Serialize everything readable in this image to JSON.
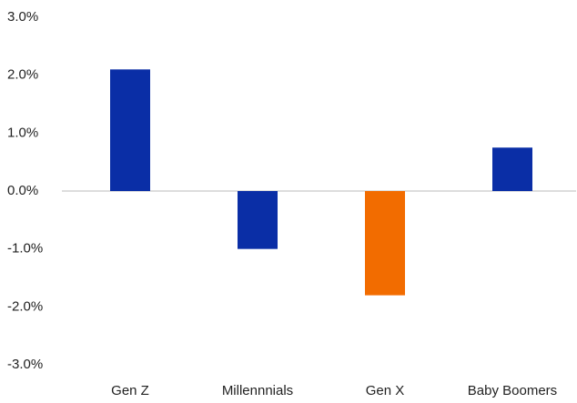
{
  "chart_data": {
    "type": "bar",
    "categories": [
      "Gen Z",
      "Millennnials",
      "Gen X",
      "Baby Boomers"
    ],
    "values": [
      2.1,
      -1.0,
      -1.8,
      0.75
    ],
    "colors": [
      "#0a2ea6",
      "#0a2ea6",
      "#f26c00",
      "#0a2ea6"
    ],
    "ylim": [
      -3,
      3
    ],
    "yticks": [
      {
        "value": 3,
        "label": "3.0%"
      },
      {
        "value": 2,
        "label": "2.0%"
      },
      {
        "value": 1,
        "label": "1.0%"
      },
      {
        "value": 0,
        "label": "0.0%"
      },
      {
        "value": -1,
        "label": "-1.0%"
      },
      {
        "value": -2,
        "label": "-2.0%"
      },
      {
        "value": -3,
        "label": "-3.0%"
      }
    ],
    "zero_line": true
  }
}
